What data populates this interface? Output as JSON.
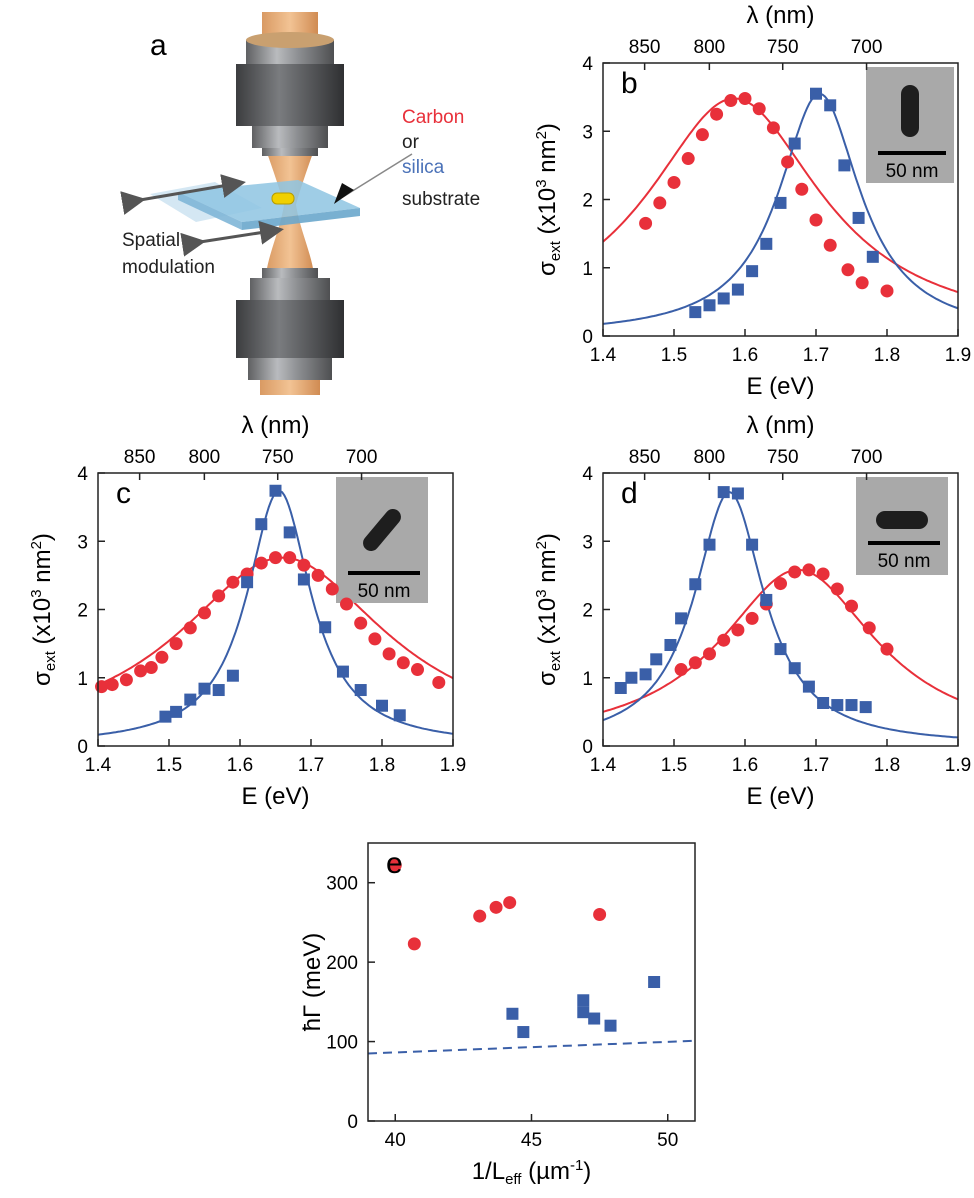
{
  "figure": {
    "panel_a": {
      "letter": "a",
      "labels": {
        "carbon": "Carbon",
        "or": "or",
        "silica": "silica",
        "substrate": "substrate",
        "spatial": "Spatial",
        "modulation": "modulation"
      },
      "colors": {
        "carbon": "#e8303a",
        "silica": "#4b72b8",
        "text": "#222222"
      }
    }
  },
  "chart_data": [
    {
      "id": "b",
      "panel_letter": "b",
      "type": "scatter",
      "xlabel": "E (eV)",
      "ylabel": "σext (x10³ nm²)",
      "top_axis_label": "λ (nm)",
      "xlim": [
        1.4,
        1.9
      ],
      "ylim": [
        0,
        4
      ],
      "xticks": [
        1.4,
        1.5,
        1.6,
        1.7,
        1.8,
        1.9
      ],
      "xtick_labels": [
        "1.4",
        "1.5",
        "1.6",
        "1.7",
        "1.8",
        "1.9"
      ],
      "yticks": [
        0,
        1,
        2,
        3,
        4
      ],
      "ytick_labels": [
        "0",
        "1",
        "2",
        "3",
        "4"
      ],
      "top_ticks": [
        850,
        800,
        750,
        700
      ],
      "top_tick_labels": [
        "850",
        "800",
        "750",
        "700"
      ],
      "inset": {
        "scale_label": "50 nm",
        "shape": "rod-vertical"
      },
      "series": [
        {
          "marker": "circle",
          "color": "#e8303a",
          "x": [
            1.46,
            1.48,
            1.5,
            1.52,
            1.54,
            1.56,
            1.58,
            1.6,
            1.62,
            1.64,
            1.66,
            1.68,
            1.7,
            1.72,
            1.745,
            1.765,
            1.8
          ],
          "y": [
            1.65,
            1.95,
            2.25,
            2.6,
            2.95,
            3.25,
            3.45,
            3.48,
            3.33,
            3.05,
            2.55,
            2.15,
            1.7,
            1.33,
            0.97,
            0.78,
            0.66
          ],
          "fit": {
            "E0": 1.585,
            "gamma": 0.3,
            "peak": 3.48
          }
        },
        {
          "marker": "square",
          "color": "#3a5fa8",
          "x": [
            1.53,
            1.55,
            1.57,
            1.59,
            1.61,
            1.63,
            1.65,
            1.67,
            1.7,
            1.72,
            1.74,
            1.76,
            1.78
          ],
          "y": [
            0.35,
            0.45,
            0.55,
            0.68,
            0.95,
            1.35,
            1.95,
            2.82,
            3.55,
            3.38,
            2.5,
            1.73,
            1.16
          ],
          "fit": {
            "E0": 1.705,
            "gamma": 0.14,
            "peak": 3.55
          }
        }
      ]
    },
    {
      "id": "c",
      "panel_letter": "c",
      "type": "scatter",
      "xlabel": "E (eV)",
      "ylabel": "σext (x10³ nm²)",
      "top_axis_label": "λ (nm)",
      "xlim": [
        1.4,
        1.9
      ],
      "ylim": [
        0,
        4
      ],
      "xticks": [
        1.4,
        1.5,
        1.6,
        1.7,
        1.8,
        1.9
      ],
      "xtick_labels": [
        "1.4",
        "1.5",
        "1.6",
        "1.7",
        "1.8",
        "1.9"
      ],
      "yticks": [
        0,
        1,
        2,
        3,
        4
      ],
      "ytick_labels": [
        "0",
        "1",
        "2",
        "3",
        "4"
      ],
      "top_ticks": [
        850,
        800,
        750,
        700
      ],
      "top_tick_labels": [
        "850",
        "800",
        "750",
        "700"
      ],
      "inset": {
        "scale_label": "50 nm",
        "shape": "rod-diagonal"
      },
      "series": [
        {
          "marker": "circle",
          "color": "#e8303a",
          "x": [
            1.405,
            1.42,
            1.44,
            1.46,
            1.475,
            1.49,
            1.51,
            1.53,
            1.55,
            1.57,
            1.59,
            1.61,
            1.63,
            1.65,
            1.67,
            1.69,
            1.71,
            1.73,
            1.75,
            1.77,
            1.79,
            1.81,
            1.83,
            1.85,
            1.88
          ],
          "y": [
            0.87,
            0.9,
            0.97,
            1.1,
            1.15,
            1.3,
            1.5,
            1.73,
            1.95,
            2.2,
            2.4,
            2.52,
            2.68,
            2.76,
            2.76,
            2.65,
            2.5,
            2.3,
            2.08,
            1.8,
            1.57,
            1.35,
            1.22,
            1.12,
            0.93
          ],
          "fit": {
            "E0": 1.66,
            "gamma": 0.36,
            "peak": 2.76
          }
        },
        {
          "marker": "square",
          "color": "#3a5fa8",
          "x": [
            1.495,
            1.51,
            1.53,
            1.55,
            1.57,
            1.59,
            1.61,
            1.63,
            1.65,
            1.67,
            1.69,
            1.72,
            1.745,
            1.77,
            1.8,
            1.825
          ],
          "y": [
            0.43,
            0.5,
            0.68,
            0.84,
            0.82,
            1.03,
            2.4,
            3.25,
            3.74,
            3.13,
            2.44,
            1.74,
            1.09,
            0.82,
            0.59,
            0.45
          ],
          "fit": {
            "E0": 1.655,
            "gamma": 0.11,
            "peak": 3.74
          }
        }
      ]
    },
    {
      "id": "d",
      "panel_letter": "d",
      "type": "scatter",
      "xlabel": "E (eV)",
      "ylabel": "σext (x10³ nm²)",
      "top_axis_label": "λ (nm)",
      "xlim": [
        1.4,
        1.9
      ],
      "ylim": [
        0,
        4
      ],
      "xticks": [
        1.4,
        1.5,
        1.6,
        1.7,
        1.8,
        1.9
      ],
      "xtick_labels": [
        "1.4",
        "1.5",
        "1.6",
        "1.7",
        "1.8",
        "1.9"
      ],
      "yticks": [
        0,
        1,
        2,
        3,
        4
      ],
      "ytick_labels": [
        "0",
        "1",
        "2",
        "3",
        "4"
      ],
      "top_ticks": [
        850,
        800,
        750,
        700
      ],
      "top_tick_labels": [
        "850",
        "800",
        "750",
        "700"
      ],
      "inset": {
        "scale_label": "50 nm",
        "shape": "rod-horizontal"
      },
      "series": [
        {
          "marker": "circle",
          "color": "#e8303a",
          "x": [
            1.51,
            1.53,
            1.55,
            1.57,
            1.59,
            1.61,
            1.63,
            1.65,
            1.67,
            1.69,
            1.71,
            1.73,
            1.75,
            1.775,
            1.8
          ],
          "y": [
            1.12,
            1.22,
            1.35,
            1.55,
            1.7,
            1.87,
            2.08,
            2.38,
            2.55,
            2.58,
            2.52,
            2.3,
            2.05,
            1.73,
            1.42
          ],
          "fit": {
            "E0": 1.675,
            "gamma": 0.27,
            "peak": 2.58
          }
        },
        {
          "marker": "square",
          "color": "#3a5fa8",
          "x": [
            1.425,
            1.44,
            1.46,
            1.475,
            1.495,
            1.51,
            1.53,
            1.55,
            1.57,
            1.59,
            1.61,
            1.63,
            1.65,
            1.67,
            1.69,
            1.71,
            1.73,
            1.75,
            1.77
          ],
          "y": [
            0.85,
            1.0,
            1.05,
            1.27,
            1.48,
            1.87,
            2.37,
            2.95,
            3.72,
            3.7,
            2.95,
            2.14,
            1.42,
            1.14,
            0.87,
            0.63,
            0.6,
            0.6,
            0.57
          ],
          "fit": {
            "E0": 1.578,
            "gamma": 0.12,
            "peak": 3.72
          }
        }
      ]
    },
    {
      "id": "e",
      "panel_letter": "e",
      "type": "scatter",
      "xlabel": "1/Leff (µm⁻¹)",
      "ylabel": "ħΓ (meV)",
      "xlim": [
        39,
        51
      ],
      "ylim": [
        0,
        350
      ],
      "xticks": [
        40,
        45,
        50
      ],
      "xtick_labels": [
        "40",
        "45",
        "50"
      ],
      "yticks": [
        0,
        100,
        200,
        300
      ],
      "ytick_labels": [
        "0",
        "100",
        "200",
        "300"
      ],
      "series": [
        {
          "marker": "circle",
          "color": "#e8303a",
          "x": [
            40.0,
            40.7,
            43.1,
            43.7,
            44.2,
            47.5
          ],
          "y": [
            322,
            223,
            258,
            269,
            275,
            260
          ]
        },
        {
          "marker": "square",
          "color": "#3a5fa8",
          "x": [
            44.3,
            44.7,
            46.9,
            46.9,
            47.3,
            47.9,
            49.5
          ],
          "y": [
            135,
            112,
            152,
            137,
            129,
            120,
            175
          ]
        }
      ],
      "reference_line": {
        "style": "dashed",
        "color": "#3a5fa8",
        "x": [
          39,
          51
        ],
        "y": [
          85,
          101
        ]
      }
    }
  ]
}
